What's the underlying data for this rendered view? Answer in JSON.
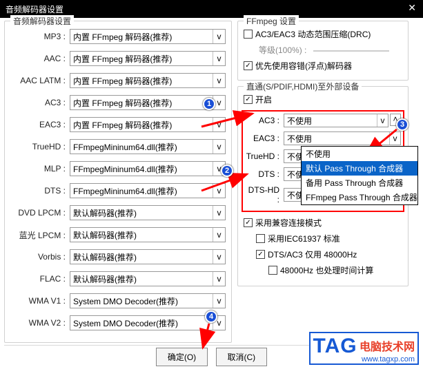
{
  "window": {
    "title": "音频解码器设置"
  },
  "left": {
    "legend": "音频解码器设置",
    "rows": [
      {
        "label": "MP3 :",
        "value": "内置 FFmpeg 解码器(推荐)"
      },
      {
        "label": "AAC :",
        "value": "内置 FFmpeg 解码器(推荐)"
      },
      {
        "label": "AAC LATM :",
        "value": "内置 FFmpeg 解码器(推荐)"
      },
      {
        "label": "AC3 :",
        "value": "内置 FFmpeg 解码器(推荐)"
      },
      {
        "label": "EAC3 :",
        "value": "内置 FFmpeg 解码器(推荐)"
      },
      {
        "label": "TrueHD :",
        "value": "FFmpegMininum64.dll(推荐)"
      },
      {
        "label": "MLP :",
        "value": "FFmpegMininum64.dll(推荐)"
      },
      {
        "label": "DTS :",
        "value": "FFmpegMininum64.dll(推荐)"
      },
      {
        "label": "DVD LPCM :",
        "value": "默认解码器(推荐)"
      },
      {
        "label": "蓝光 LPCM :",
        "value": "默认解码器(推荐)"
      },
      {
        "label": "Vorbis :",
        "value": "默认解码器(推荐)"
      },
      {
        "label": "FLAC :",
        "value": "默认解码器(推荐)"
      },
      {
        "label": "WMA V1 :",
        "value": "System DMO Decoder(推荐)"
      },
      {
        "label": "WMA V2 :",
        "value": "System DMO Decoder(推荐)"
      }
    ]
  },
  "ffmpeg": {
    "legend": "FFmpeg 设置",
    "drc_label": "AC3/EAC3 动态范围压缩(DRC)",
    "drc_checked": false,
    "level_label": "等级(100%) :",
    "float_label": "优先使用容错(浮点)解码器",
    "float_checked": true
  },
  "passthrough": {
    "legend": "直通(S/PDIF,HDMI)至外部设备",
    "enable_label": "开启",
    "enable_checked": true,
    "rows": [
      {
        "label": "AC3 :",
        "value": "不使用"
      },
      {
        "label": "EAC3 :",
        "value": "不使用"
      },
      {
        "label": "TrueHD :",
        "value": "不使用"
      },
      {
        "label": "DTS :",
        "value": "不使用"
      },
      {
        "label": "DTS-HD :",
        "value": "不使用"
      }
    ],
    "up_caret": "˄",
    "dropdown": [
      "不使用",
      "默认 Pass Through 合成器",
      "备用 Pass Through 合成器",
      "FFmpeg Pass Through 合成器"
    ],
    "dropdown_selected": 1,
    "compat_label": "采用兼容连接模式",
    "compat_checked": true,
    "iec_label": "采用IEC61937 标准",
    "iec_checked": false,
    "dts48_label": "DTS/AC3 仅用 48000Hz",
    "dts48_checked": true,
    "time_label": "48000Hz 也处理时间计算",
    "time_checked": false
  },
  "footer": {
    "ok": "确定(O)",
    "cancel": "取消(C)"
  },
  "badges": {
    "b1": "1",
    "b2": "2",
    "b3": "3",
    "b4": "4"
  },
  "caret": "v",
  "checkmark": "✓",
  "logo": {
    "tag": "TAG",
    "cn": "电脑技术网",
    "url": "www.tagxp.com"
  },
  "colors": {
    "arrow": "#ff0000",
    "badge": "#1a4fd6"
  }
}
